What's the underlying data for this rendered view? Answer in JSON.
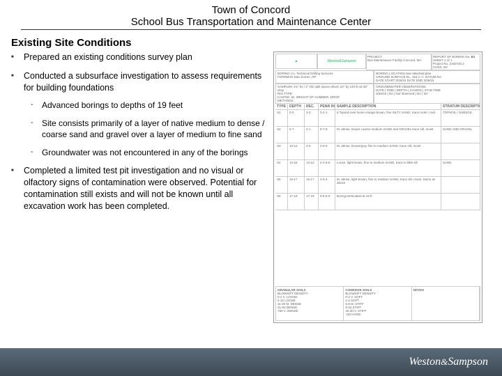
{
  "header": {
    "line1": "Town of Concord",
    "line2": "School Bus Transportation and Maintenance Center"
  },
  "section_title": "Existing Site Conditions",
  "bullets": [
    {
      "text": "Prepared an existing conditions survey plan"
    },
    {
      "text": "Conducted a subsurface investigation to assess requirements for building foundations",
      "sub": [
        "Advanced borings to depths of 19 feet",
        "Site consists primarily of a layer of native medium to dense / coarse sand and gravel over a layer of medium to fine sand",
        "Groundwater was not encountered in any of the borings"
      ]
    },
    {
      "text": "Completed a limited test pit investigation and no visual or olfactory signs of contamination were observed. Potential for contamination still exists and will not be known until all excavation work has been completed."
    }
  ],
  "report": {
    "logo_text": "Weston&Sampson",
    "project_label": "PROJECT",
    "project_value": "Bus Maintenance Facility  Concord, MA",
    "report_title": "REPORT OF BORING No.",
    "boring_no": "B1",
    "sheet": "SHEET 1 of 1",
    "project_no": "Project No. 2150720.2",
    "checked_by": "CHKD. BY",
    "boring_co": "BORING Co.",
    "boring_co_val": "Technical Drilling Services",
    "foreman": "FOREMAN",
    "foreman_val": "Dan Sorren, RP",
    "boring_location": "BORING LOCATION   See attached plan",
    "ground_surface": "GROUND SURFACE EL.   153.1 +/-   DATUM   NA",
    "date_start": "DATE START   3/26/15    DATE END   3/26/15",
    "sampler": "SAMPLER   1⅜\" ID / 2\" OD split spoon driven 24\" by 140 lb wt 30\" drop",
    "groundwater": "GROUNDWATER OBSERVATIONS",
    "gw_cols": [
      "DATE",
      "TIME",
      "DEPTH",
      "CASING",
      "STAB TIME"
    ],
    "gw_vals": [
      "3/26/15",
      "NA",
      "Not observed",
      "NA",
      "NA"
    ],
    "rig_type": "RIG TYPE:",
    "casing": "CASING: ID, WEIGHT OF HAMMER, DROP",
    "methods": "METHODS",
    "col_headers": [
      "TYPE & NO.",
      "DEPTH",
      "REC.",
      "PEN/6 IN",
      "SAMPLE DESCRIPTION",
      "STRATUM DESCRIPTION"
    ],
    "rows": [
      {
        "no": "S1",
        "depth": "0-2",
        "rec": "3-2",
        "pen": "3-2-1",
        "desc": "6 Topsoil over loose orange-brown, fine SILTY SAND, trace roots / rock",
        "stratum": "TOPSOIL / SUBSOIL"
      },
      {
        "no": "S2",
        "depth": "5-7",
        "rec": "2-1",
        "pen": "8-7-8",
        "desc": "M. dense, brown coarse-medium SAND and GRAVEL trace silt, moist",
        "stratum": "SAND AND GRAVEL"
      },
      {
        "no": "S3",
        "depth": "10-12",
        "rec": "4-6",
        "pen": "4-5-5",
        "desc": "M. dense, brown/gray fine to medium SAND, trace silt, moist",
        "stratum": ""
      },
      {
        "no": "S4",
        "depth": "13-15",
        "rec": "13-12",
        "pen": "4-4-5-6",
        "desc": "Loose, light brown, fine to medium SAND, trace to little silt",
        "stratum": "SAND"
      },
      {
        "no": "S5",
        "depth": "15-17",
        "rec": "15-17",
        "pen": "4-5-4",
        "desc": "M. dense, light brown, fine to medium SAND, trace silt, moist. Same as above",
        "stratum": ""
      },
      {
        "no": "S6",
        "depth": "17-19",
        "rec": "17-19",
        "pen": "6-5-6-6",
        "desc": "Boring terminated at 19 ft",
        "stratum": ""
      }
    ],
    "granular_title": "GRANULAR SOILS",
    "granular_hdr": [
      "BLOWS/FT",
      "DENSITY"
    ],
    "granular_rows": [
      [
        "0-4",
        "V. LOOSE"
      ],
      [
        "4-10",
        "LOOSE"
      ],
      [
        "11-30",
        "M. DENSE"
      ],
      [
        "31-50",
        "DENSE"
      ],
      [
        ">50",
        "V. DENSE"
      ]
    ],
    "cohesive_title": "COHESIVE SOILS",
    "cohesive_hdr": [
      "BLOWS/FT",
      "DENSITY"
    ],
    "cohesive_rows": [
      [
        "0-2",
        "V. SOFT"
      ],
      [
        "2-4",
        "SOFT"
      ],
      [
        "5-8",
        "M. STIFF"
      ],
      [
        "9-15",
        "STIFF"
      ],
      [
        "16-30",
        "V. STIFF"
      ],
      [
        ">30",
        "HARD"
      ]
    ],
    "notes_title": "NOTES"
  },
  "footer_logo": "Weston&Sampson",
  "colors": {
    "footer_bg": "#4a5863",
    "text": "#000000",
    "rule": "#bbbbbb"
  }
}
